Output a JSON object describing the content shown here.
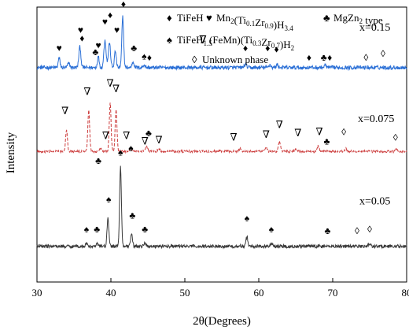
{
  "chart_data": {
    "type": "line",
    "xlabel": "2θ(Degrees)",
    "ylabel": "Intensity",
    "xlim": [
      30,
      80
    ],
    "x_ticks": [
      30,
      40,
      50,
      60,
      70,
      80
    ],
    "y_ticks_shown": false,
    "grid": false,
    "legend_placement": "top",
    "legend": [
      {
        "symbol": "♦",
        "label": "TiFeH"
      },
      {
        "symbol": "♥",
        "label": "Mn2(Ti0.1Zr0.9)H3.4"
      },
      {
        "symbol": "♣",
        "label": "MgZn2 type"
      },
      {
        "symbol": "♠",
        "label": "TiFeH1.5"
      },
      {
        "symbol": "∇",
        "label": "(FeMn)(Ti0.3Zr0.7)H2"
      },
      {
        "symbol": "◊",
        "label": "Unknown phase"
      }
    ],
    "series": [
      {
        "name": "x=0.15",
        "color": "#2a6fd6",
        "baseline": 0.78,
        "noise": 0.007,
        "peaks": [
          {
            "x": 33.0,
            "height": 0.035,
            "width": 0.25
          },
          {
            "x": 34.3,
            "height": 0.015,
            "width": 0.3
          },
          {
            "x": 35.8,
            "height": 0.075,
            "width": 0.28
          },
          {
            "x": 38.3,
            "height": 0.04,
            "width": 0.25
          },
          {
            "x": 39.2,
            "height": 0.1,
            "width": 0.3
          },
          {
            "x": 39.8,
            "height": 0.09,
            "width": 0.3
          },
          {
            "x": 40.6,
            "height": 0.06,
            "width": 0.25
          },
          {
            "x": 41.6,
            "height": 0.185,
            "width": 0.25
          },
          {
            "x": 43.0,
            "height": 0.02,
            "width": 0.3
          },
          {
            "x": 44.5,
            "height": 0.01,
            "width": 0.3
          },
          {
            "x": 58.2,
            "height": 0.012,
            "width": 0.3
          },
          {
            "x": 61.5,
            "height": 0.01,
            "width": 0.3
          },
          {
            "x": 62.5,
            "height": 0.01,
            "width": 0.3
          },
          {
            "x": 69.0,
            "height": 0.008,
            "width": 0.3
          }
        ],
        "markers": [
          {
            "x": 33.0,
            "symbol": "♥",
            "lift": 0.06
          },
          {
            "x": 35.9,
            "symbol": "♥",
            "lift": 0.125
          },
          {
            "x": 36.1,
            "symbol": "♦",
            "lift": 0.095
          },
          {
            "x": 37.9,
            "symbol": "♣",
            "lift": 0.045
          },
          {
            "x": 38.3,
            "symbol": "♥",
            "lift": 0.07
          },
          {
            "x": 39.2,
            "symbol": "♥",
            "lift": 0.155
          },
          {
            "x": 39.9,
            "symbol": "♦",
            "lift": 0.18
          },
          {
            "x": 40.8,
            "symbol": "♥",
            "lift": 0.125
          },
          {
            "x": 41.7,
            "symbol": "♦",
            "lift": 0.22
          },
          {
            "x": 43.1,
            "symbol": "♣",
            "lift": 0.06
          },
          {
            "x": 44.5,
            "symbol": "♠",
            "lift": 0.03
          },
          {
            "x": 45.2,
            "symbol": "♦",
            "lift": 0.025
          },
          {
            "x": 58.2,
            "symbol": "♦",
            "lift": 0.06
          },
          {
            "x": 61.2,
            "symbol": "♦",
            "lift": 0.06
          },
          {
            "x": 62.4,
            "symbol": "♦",
            "lift": 0.055
          },
          {
            "x": 66.8,
            "symbol": "♦",
            "lift": 0.025
          },
          {
            "x": 68.8,
            "symbol": "♣",
            "lift": 0.025
          },
          {
            "x": 69.6,
            "symbol": "♦",
            "lift": 0.025
          },
          {
            "x": 74.5,
            "symbol": "◊",
            "lift": 0.025
          },
          {
            "x": 76.8,
            "symbol": "◊",
            "lift": 0.04
          }
        ]
      },
      {
        "name": "x=0.075",
        "color": "#cc3b3b",
        "baseline": 0.475,
        "noise": 0.004,
        "dashed": true,
        "peaks": [
          {
            "x": 34.0,
            "height": 0.08,
            "width": 0.25
          },
          {
            "x": 37.0,
            "height": 0.15,
            "width": 0.25
          },
          {
            "x": 38.6,
            "height": 0.01,
            "width": 0.3
          },
          {
            "x": 39.9,
            "height": 0.175,
            "width": 0.25
          },
          {
            "x": 40.7,
            "height": 0.15,
            "width": 0.25
          },
          {
            "x": 42.7,
            "height": 0.01,
            "width": 0.3
          },
          {
            "x": 44.8,
            "height": 0.02,
            "width": 0.3
          },
          {
            "x": 46.5,
            "height": 0.01,
            "width": 0.3
          },
          {
            "x": 57.5,
            "height": 0.01,
            "width": 0.3
          },
          {
            "x": 61.0,
            "height": 0.015,
            "width": 0.3
          },
          {
            "x": 62.8,
            "height": 0.035,
            "width": 0.3
          },
          {
            "x": 65.0,
            "height": 0.01,
            "width": 0.3
          },
          {
            "x": 68.0,
            "height": 0.02,
            "width": 0.3
          },
          {
            "x": 71.8,
            "height": 0.01,
            "width": 0.3
          },
          {
            "x": 78.6,
            "height": 0.01,
            "width": 0.3
          }
        ],
        "markers": [
          {
            "x": 33.8,
            "symbol": "∇",
            "lift": 0.135
          },
          {
            "x": 36.8,
            "symbol": "∇",
            "lift": 0.205
          },
          {
            "x": 38.3,
            "symbol": "♣",
            "lift": -0.045
          },
          {
            "x": 39.3,
            "symbol": "∇",
            "lift": 0.045
          },
          {
            "x": 39.9,
            "symbol": "∇",
            "lift": 0.235
          },
          {
            "x": 40.7,
            "symbol": "∇",
            "lift": 0.215
          },
          {
            "x": 42.1,
            "symbol": "∇",
            "lift": 0.045
          },
          {
            "x": 42.7,
            "symbol": "♠",
            "lift": 0.0
          },
          {
            "x": 44.6,
            "symbol": "∇",
            "lift": 0.025
          },
          {
            "x": 45.1,
            "symbol": "♣",
            "lift": 0.055
          },
          {
            "x": 46.5,
            "symbol": "∇",
            "lift": 0.03
          },
          {
            "x": 56.6,
            "symbol": "∇",
            "lift": 0.04
          },
          {
            "x": 61.0,
            "symbol": "∇",
            "lift": 0.05
          },
          {
            "x": 62.8,
            "symbol": "∇",
            "lift": 0.085
          },
          {
            "x": 65.3,
            "symbol": "∇",
            "lift": 0.055
          },
          {
            "x": 68.2,
            "symbol": "∇",
            "lift": 0.06
          },
          {
            "x": 69.2,
            "symbol": "♣",
            "lift": 0.025
          },
          {
            "x": 71.5,
            "symbol": "◊",
            "lift": 0.06
          },
          {
            "x": 78.5,
            "symbol": "◊",
            "lift": 0.04
          }
        ]
      },
      {
        "name": "x=0.05",
        "color": "#3a3a3a",
        "baseline": 0.13,
        "noise": 0.006,
        "peaks": [
          {
            "x": 36.7,
            "height": 0.008,
            "width": 0.3
          },
          {
            "x": 38.2,
            "height": 0.008,
            "width": 0.3
          },
          {
            "x": 39.6,
            "height": 0.1,
            "width": 0.25
          },
          {
            "x": 41.3,
            "height": 0.29,
            "width": 0.25
          },
          {
            "x": 42.8,
            "height": 0.045,
            "width": 0.25
          },
          {
            "x": 44.6,
            "height": 0.01,
            "width": 0.3
          },
          {
            "x": 58.4,
            "height": 0.035,
            "width": 0.25
          },
          {
            "x": 61.7,
            "height": 0.01,
            "width": 0.3
          },
          {
            "x": 75.0,
            "height": 0.008,
            "width": 0.3
          }
        ],
        "markers": [
          {
            "x": 36.7,
            "symbol": "♠",
            "lift": 0.05
          },
          {
            "x": 38.1,
            "symbol": "♣",
            "lift": 0.05
          },
          {
            "x": 39.7,
            "symbol": "♠",
            "lift": 0.16
          },
          {
            "x": 41.3,
            "symbol": "♠",
            "lift": 0.33
          },
          {
            "x": 42.9,
            "symbol": "♣",
            "lift": 0.1
          },
          {
            "x": 44.6,
            "symbol": "♣",
            "lift": 0.05
          },
          {
            "x": 58.4,
            "symbol": "♠",
            "lift": 0.09
          },
          {
            "x": 61.7,
            "symbol": "♠",
            "lift": 0.05
          },
          {
            "x": 69.3,
            "symbol": "♣",
            "lift": 0.045
          },
          {
            "x": 73.3,
            "symbol": "◊",
            "lift": 0.045
          },
          {
            "x": 75.0,
            "symbol": "◊",
            "lift": 0.05
          }
        ]
      }
    ]
  }
}
